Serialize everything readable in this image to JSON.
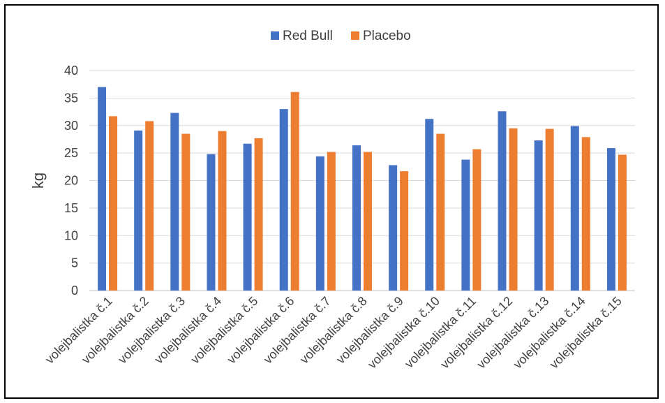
{
  "chart_data": {
    "type": "bar",
    "title": "",
    "xlabel": "",
    "ylabel": "kg",
    "ylim": [
      0,
      40
    ],
    "yticks": [
      0,
      5,
      10,
      15,
      20,
      25,
      30,
      35,
      40
    ],
    "grid": true,
    "legend_position": "top",
    "categories": [
      "volejbalistka č.1",
      "volejbalistka č.2",
      "volejbalistka č.3",
      "volejbalistka č.4",
      "volejbalistka č.5",
      "volejbalistka č.6",
      "volejbalistka č.7",
      "volejbalistka č.8",
      "volejbalistka č.9",
      "volejbalistka č.10",
      "volejbalistka č.11",
      "volejbalistka č.12",
      "volejbalistka č.13",
      "volejbalistka č.14",
      "volejbalistka č.15"
    ],
    "series": [
      {
        "name": "Red Bull",
        "color": "#4472C4",
        "values": [
          37.0,
          29.1,
          32.3,
          24.8,
          26.7,
          33.0,
          24.4,
          26.4,
          22.8,
          31.2,
          23.8,
          32.6,
          27.3,
          29.9,
          25.9
        ]
      },
      {
        "name": "Placebo",
        "color": "#ED7D31",
        "values": [
          31.7,
          30.8,
          28.5,
          29.0,
          27.7,
          36.1,
          25.2,
          25.2,
          21.7,
          28.5,
          25.7,
          29.5,
          29.4,
          27.9,
          24.7
        ]
      }
    ]
  }
}
